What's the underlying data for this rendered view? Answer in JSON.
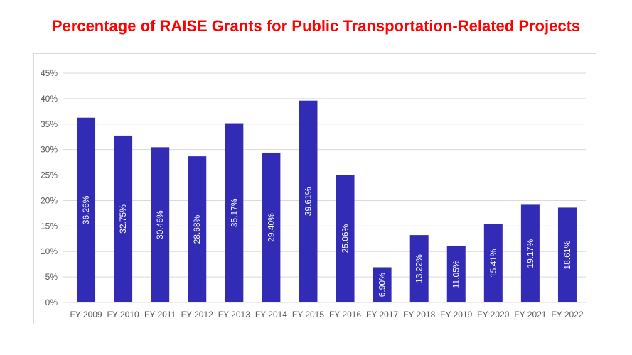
{
  "chart_data": {
    "type": "bar",
    "title": "Percentage of RAISE Grants for Public Transportation-Related Projects",
    "xlabel": "",
    "ylabel": "",
    "categories": [
      "FY 2009",
      "FY 2010",
      "FY 2011",
      "FY 2012",
      "FY 2013",
      "FY 2014",
      "FY 2015",
      "FY 2016",
      "FY 2017",
      "FY 2018",
      "FY 2019",
      "FY 2020",
      "FY 2021",
      "FY 2022"
    ],
    "values": [
      36.26,
      32.75,
      30.46,
      28.68,
      35.17,
      29.4,
      39.61,
      25.06,
      6.9,
      13.22,
      11.05,
      15.41,
      19.17,
      18.61
    ],
    "data_labels": [
      "36.26%",
      "32.75%",
      "30.46%",
      "28.68%",
      "35.17%",
      "29.40%",
      "39.61%",
      "25.06%",
      "6.90%",
      "13.22%",
      "11.05%",
      "15.41%",
      "19.17%",
      "18.61%"
    ],
    "ylim": [
      0,
      45
    ],
    "yticks": [
      "0%",
      "5%",
      "10%",
      "15%",
      "20%",
      "25%",
      "30%",
      "35%",
      "40%",
      "45%"
    ],
    "grid": true,
    "legend": "none",
    "bar_color": "#312BB5",
    "title_color": "#FF0000"
  }
}
